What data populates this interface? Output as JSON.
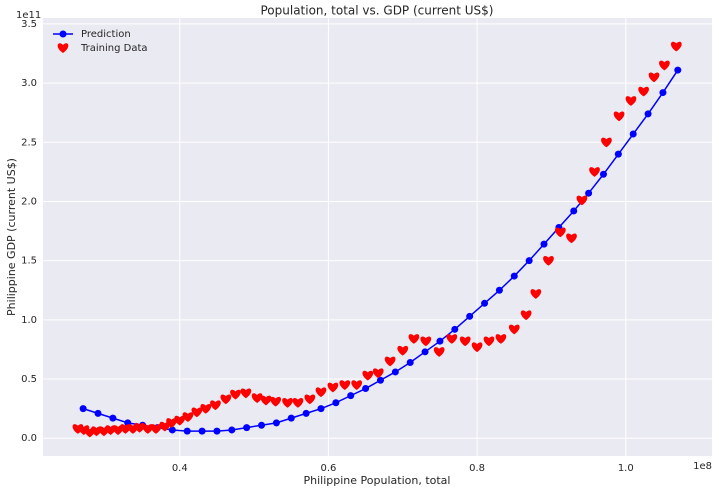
{
  "chart_data": {
    "type": "scatter",
    "title": "Population, total vs. GDP (current US$)",
    "x_label": "Philippine Population, total",
    "y_label": "Philippine GDP (current US$)",
    "x_offset": "1e8",
    "y_offset": "1e11",
    "xlim": [
      0.216,
      1.116
    ],
    "ylim": [
      -0.15,
      3.55
    ],
    "xticks": [
      0.4,
      0.6,
      0.8,
      {
        "value": 1,
        "label": "1.0"
      }
    ],
    "yticks": [
      {
        "value": 0,
        "label": "0.0"
      },
      0.5,
      {
        "value": 1,
        "label": "1.0"
      },
      1.5,
      {
        "value": 2,
        "label": "2.0"
      },
      2.5,
      {
        "value": 3,
        "label": "3.0"
      },
      3.5
    ],
    "grid": true,
    "legend": "upper left",
    "series": [
      {
        "name": "Prediction",
        "color": "#0000ff",
        "marker": "circle",
        "line": true,
        "x": [
          0.27,
          0.29,
          0.31,
          0.33,
          0.35,
          0.37,
          0.39,
          0.41,
          0.43,
          0.45,
          0.47,
          0.49,
          0.51,
          0.53,
          0.55,
          0.57,
          0.59,
          0.61,
          0.63,
          0.65,
          0.67,
          0.69,
          0.71,
          0.73,
          0.75,
          0.77,
          0.79,
          0.81,
          0.83,
          0.85,
          0.87,
          0.89,
          0.91,
          0.93,
          0.95,
          0.97,
          0.99,
          1.01,
          1.03,
          1.05,
          1.07
        ],
        "values": [
          0.25,
          0.21,
          0.17,
          0.13,
          0.11,
          0.09,
          0.07,
          0.06,
          0.06,
          0.06,
          0.07,
          0.09,
          0.11,
          0.13,
          0.17,
          0.21,
          0.25,
          0.3,
          0.36,
          0.42,
          0.49,
          0.56,
          0.64,
          0.73,
          0.82,
          0.92,
          1.03,
          1.14,
          1.25,
          1.37,
          1.5,
          1.64,
          1.78,
          1.92,
          2.07,
          2.23,
          2.4,
          2.57,
          2.74,
          2.92,
          3.11
        ]
      },
      {
        "name": "Training Data",
        "color": "#ff0000",
        "marker": "heart",
        "line": false,
        "x": [
          0.263,
          0.271,
          0.279,
          0.288,
          0.298,
          0.307,
          0.317,
          0.327,
          0.337,
          0.346,
          0.357,
          0.368,
          0.38,
          0.389,
          0.4,
          0.411,
          0.423,
          0.435,
          0.448,
          0.462,
          0.475,
          0.489,
          0.504,
          0.516,
          0.529,
          0.545,
          0.559,
          0.575,
          0.59,
          0.606,
          0.622,
          0.638,
          0.653,
          0.667,
          0.683,
          0.7,
          0.715,
          0.731,
          0.749,
          0.766,
          0.784,
          0.8,
          0.816,
          0.832,
          0.85,
          0.866,
          0.879,
          0.896,
          0.912,
          0.927,
          0.941,
          0.958,
          0.974,
          0.991,
          1.007,
          1.024,
          1.038,
          1.052,
          1.068
        ],
        "values": [
          0.08,
          0.07,
          0.05,
          0.06,
          0.06,
          0.07,
          0.07,
          0.08,
          0.08,
          0.09,
          0.08,
          0.08,
          0.1,
          0.13,
          0.15,
          0.18,
          0.22,
          0.25,
          0.28,
          0.33,
          0.37,
          0.38,
          0.34,
          0.32,
          0.31,
          0.3,
          0.3,
          0.33,
          0.39,
          0.43,
          0.45,
          0.45,
          0.53,
          0.55,
          0.65,
          0.74,
          0.84,
          0.82,
          0.73,
          0.84,
          0.82,
          0.77,
          0.82,
          0.84,
          0.92,
          1.04,
          1.22,
          1.5,
          1.74,
          1.69,
          2.01,
          2.25,
          2.5,
          2.72,
          2.85,
          2.93,
          3.05,
          3.15,
          3.31
        ]
      }
    ]
  }
}
